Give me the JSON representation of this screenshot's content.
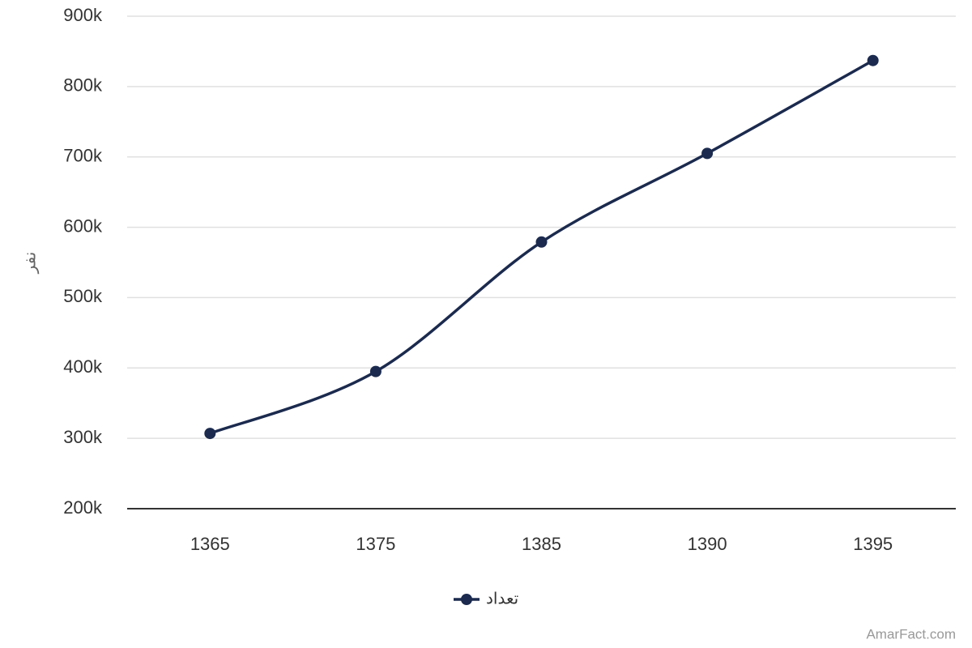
{
  "chart_data": {
    "type": "line",
    "y_label": "نفر",
    "categories": [
      "1365",
      "1375",
      "1385",
      "1390",
      "1395"
    ],
    "series": [
      {
        "name": "تعداد",
        "color": "#1b2a4e",
        "values": [
          307000,
          395000,
          579000,
          705000,
          837000
        ]
      }
    ],
    "ylim": [
      200000,
      900000
    ],
    "yticks": [
      {
        "value": 200000,
        "label": "200k"
      },
      {
        "value": 300000,
        "label": "300k"
      },
      {
        "value": 400000,
        "label": "400k"
      },
      {
        "value": 500000,
        "label": "500k"
      },
      {
        "value": 600000,
        "label": "600k"
      },
      {
        "value": 700000,
        "label": "700k"
      },
      {
        "value": 800000,
        "label": "800k"
      },
      {
        "value": 900000,
        "label": "900k"
      }
    ],
    "grid": true,
    "smooth": true,
    "legend": "bottom",
    "credit": "AmarFact.com"
  }
}
